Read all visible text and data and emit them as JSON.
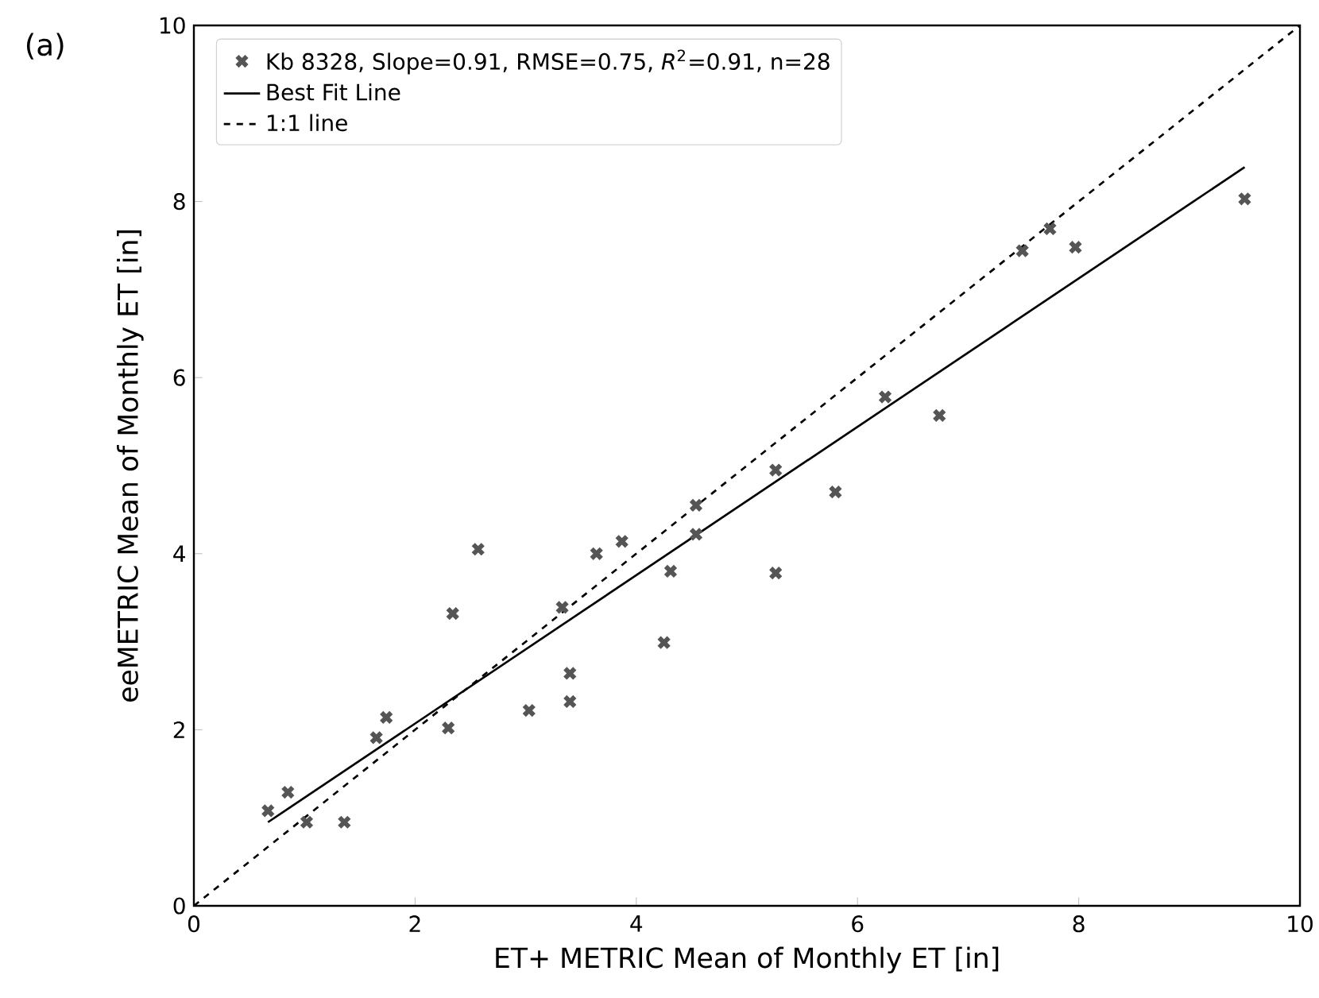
{
  "chart_data": {
    "type": "scatter",
    "xlabel": "ET+ METRIC Mean of Monthly ET [in]",
    "ylabel": "eeMETRIC Mean of Monthly ET [in]",
    "annotations": [
      "(a)"
    ],
    "xlim": [
      0,
      10
    ],
    "ylim": [
      0,
      10
    ],
    "xticks": [
      0,
      2,
      4,
      6,
      8,
      10
    ],
    "yticks": [
      0,
      2,
      4,
      6,
      8,
      10
    ],
    "grid": false,
    "legend": "top left",
    "series": [
      {
        "name": "Kb 8328, Slope=0.91, RMSE=0.75, *R*$^{2}$=0.91, n=28",
        "marker": "cross",
        "color": "#555555",
        "x": [
          0.67,
          0.85,
          1.02,
          1.36,
          1.65,
          1.74,
          2.3,
          2.34,
          2.57,
          3.03,
          3.33,
          3.4,
          3.4,
          3.64,
          3.87,
          4.25,
          4.31,
          4.54,
          4.54,
          5.26,
          5.26,
          5.8,
          6.25,
          6.74,
          7.49,
          7.74,
          7.97,
          9.5
        ],
        "values": [
          1.08,
          1.29,
          0.95,
          0.95,
          1.91,
          2.14,
          2.02,
          3.32,
          4.05,
          2.22,
          3.39,
          2.64,
          2.32,
          4.0,
          4.14,
          2.99,
          3.8,
          4.55,
          4.22,
          4.95,
          3.78,
          4.7,
          5.78,
          5.57,
          7.44,
          7.69,
          7.48,
          8.03
        ]
      },
      {
        "name": "Best Fit Line",
        "type": "line",
        "line_style": "solid",
        "color": "#000000",
        "x": [
          0.67,
          9.5
        ],
        "values": [
          0.95,
          8.39
        ]
      },
      {
        "name": "1:1 line",
        "type": "line",
        "line_style": "dashed",
        "color": "#000000",
        "x": [
          0,
          10
        ],
        "values": [
          0,
          10
        ]
      }
    ]
  }
}
